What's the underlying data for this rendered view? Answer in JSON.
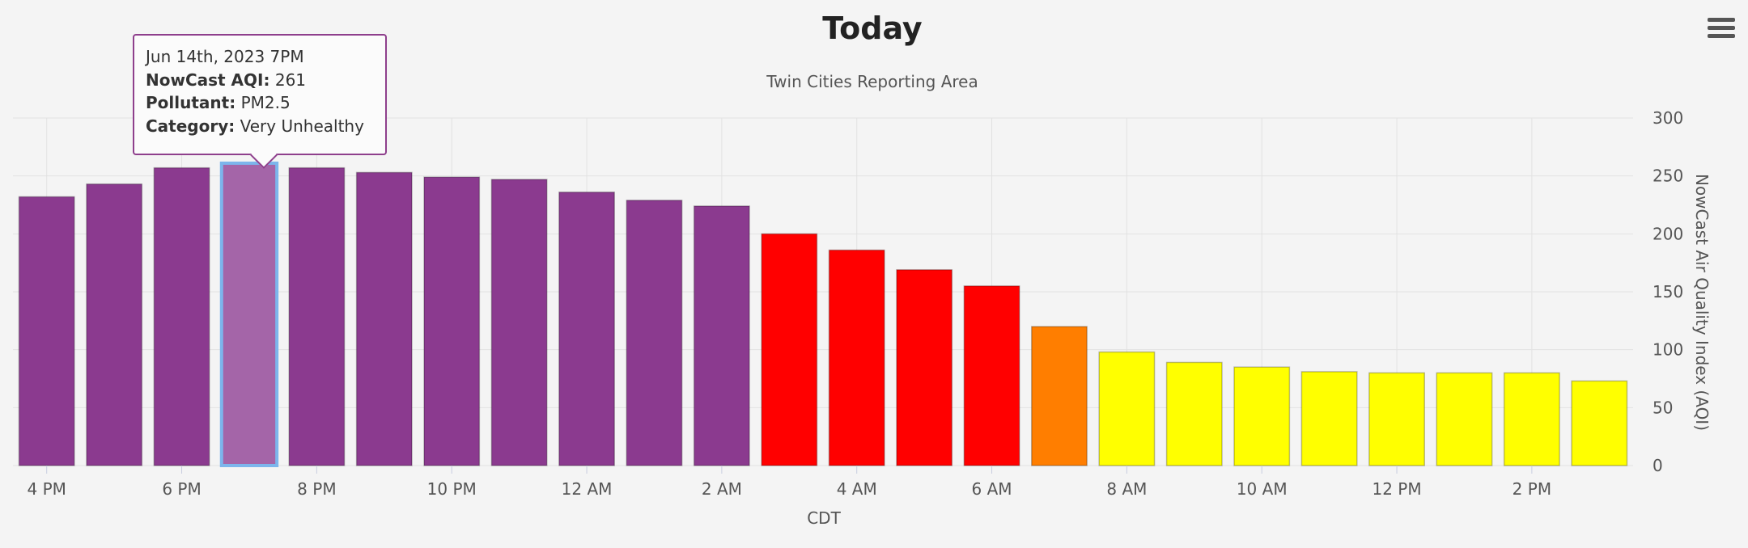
{
  "colors": {
    "very_unhealthy": "#8b3a8f",
    "unhealthy": "#ff0000",
    "unhealthy_sensitive": "#ff7e00",
    "moderate": "#ffff00",
    "highlight_fill": "#a465a8",
    "highlight_border": "#7cb5ec"
  },
  "menu": {
    "icon": "hamburger-menu-icon"
  },
  "tooltip": {
    "date": "Jun 14th, 2023 7PM",
    "aqi_label": "NowCast AQI:",
    "aqi_value": "261",
    "pollutant_label": "Pollutant:",
    "pollutant_value": "PM2.5",
    "category_label": "Category:",
    "category_value": "Very Unhealthy"
  },
  "chart_data": {
    "type": "bar",
    "title": "Today",
    "subtitle": "Twin Cities Reporting Area",
    "xlabel": "CDT",
    "ylabel": "NowCast Air Quality Index (AQI)",
    "ylim": [
      0,
      300
    ],
    "yticks": [
      0,
      50,
      100,
      150,
      200,
      250,
      300
    ],
    "xticks": [
      "4 PM",
      "6 PM",
      "8 PM",
      "10 PM",
      "12 AM",
      "2 AM",
      "4 AM",
      "6 AM",
      "8 AM",
      "10 AM",
      "12 PM",
      "2 PM"
    ],
    "grid": true,
    "highlighted_index": 3,
    "values": [
      232,
      243,
      257,
      261,
      257,
      253,
      249,
      247,
      236,
      229,
      224,
      200,
      186,
      169,
      155,
      120,
      98,
      89,
      85,
      81,
      80,
      80,
      80,
      73
    ],
    "categories_aqi": [
      "very_unhealthy",
      "very_unhealthy",
      "very_unhealthy",
      "very_unhealthy",
      "very_unhealthy",
      "very_unhealthy",
      "very_unhealthy",
      "very_unhealthy",
      "very_unhealthy",
      "very_unhealthy",
      "very_unhealthy",
      "unhealthy",
      "unhealthy",
      "unhealthy",
      "unhealthy",
      "unhealthy_sensitive",
      "moderate",
      "moderate",
      "moderate",
      "moderate",
      "moderate",
      "moderate",
      "moderate",
      "moderate"
    ]
  }
}
